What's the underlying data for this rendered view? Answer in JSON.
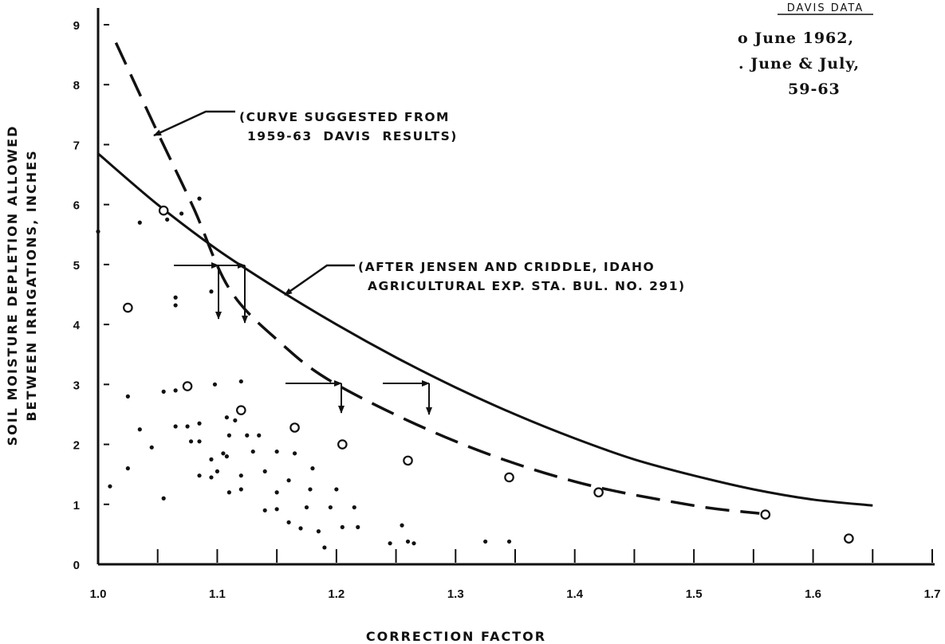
{
  "chart_data": {
    "type": "scatter",
    "title": "",
    "xlabel": "CORRECTION FACTOR",
    "ylabel_line1": "SOIL MOISTURE DEPLETION ALLOWED",
    "ylabel_line2": "BETWEEN IRRIGATIONS, INCHES",
    "xlim": [
      1.0,
      1.7
    ],
    "ylim": [
      0,
      9
    ],
    "x_ticks": [
      1.0,
      1.1,
      1.2,
      1.3,
      1.4,
      1.5,
      1.6,
      1.7
    ],
    "x_tick_labels": [
      "1.0",
      "1.1",
      "1.2",
      "1.3",
      "1.4",
      "1.5",
      "1.6",
      "1.7"
    ],
    "y_ticks": [
      0,
      1,
      2,
      3,
      4,
      5,
      6,
      7,
      8,
      9
    ],
    "y_tick_labels": [
      "0",
      "1",
      "2",
      "3",
      "4",
      "5",
      "6",
      "7",
      "8",
      "9"
    ],
    "legend": {
      "title": "DAVIS DATA",
      "entries": [
        "o June 1962,",
        ". June & July,",
        "59-63"
      ],
      "placement": "top-right"
    },
    "series": [
      {
        "name": "June 1962",
        "marker": "open-circle",
        "points": [
          [
            1.025,
            4.28
          ],
          [
            1.055,
            5.9
          ],
          [
            1.075,
            2.97
          ],
          [
            1.12,
            2.57
          ],
          [
            1.165,
            2.28
          ],
          [
            1.205,
            2.0
          ],
          [
            1.26,
            1.73
          ],
          [
            1.345,
            1.45
          ],
          [
            1.42,
            1.2
          ],
          [
            1.56,
            0.83
          ],
          [
            1.63,
            0.43
          ]
        ]
      },
      {
        "name": "June & July, 59-63",
        "marker": "dot",
        "points": [
          [
            1.0,
            5.55
          ],
          [
            1.01,
            1.3
          ],
          [
            1.025,
            2.8
          ],
          [
            1.025,
            1.6
          ],
          [
            1.035,
            5.7
          ],
          [
            1.035,
            2.25
          ],
          [
            1.045,
            1.95
          ],
          [
            1.055,
            2.88
          ],
          [
            1.055,
            1.1
          ],
          [
            1.058,
            5.75
          ],
          [
            1.065,
            4.45
          ],
          [
            1.065,
            4.32
          ],
          [
            1.065,
            2.9
          ],
          [
            1.065,
            2.3
          ],
          [
            1.07,
            5.85
          ],
          [
            1.075,
            2.3
          ],
          [
            1.078,
            2.05
          ],
          [
            1.085,
            6.1
          ],
          [
            1.085,
            2.35
          ],
          [
            1.085,
            2.05
          ],
          [
            1.085,
            1.48
          ],
          [
            1.095,
            4.55
          ],
          [
            1.095,
            1.75
          ],
          [
            1.095,
            1.45
          ],
          [
            1.098,
            3.0
          ],
          [
            1.1,
            1.55
          ],
          [
            1.105,
            1.85
          ],
          [
            1.108,
            2.45
          ],
          [
            1.11,
            2.15
          ],
          [
            1.108,
            1.8
          ],
          [
            1.11,
            1.2
          ],
          [
            1.115,
            2.4
          ],
          [
            1.12,
            3.05
          ],
          [
            1.12,
            1.48
          ],
          [
            1.12,
            1.25
          ],
          [
            1.125,
            2.15
          ],
          [
            1.13,
            1.88
          ],
          [
            1.135,
            2.15
          ],
          [
            1.14,
            1.55
          ],
          [
            1.14,
            0.9
          ],
          [
            1.15,
            1.88
          ],
          [
            1.15,
            1.2
          ],
          [
            1.15,
            0.92
          ],
          [
            1.16,
            1.4
          ],
          [
            1.16,
            0.7
          ],
          [
            1.165,
            1.85
          ],
          [
            1.17,
            0.6
          ],
          [
            1.175,
            0.95
          ],
          [
            1.178,
            1.25
          ],
          [
            1.18,
            1.6
          ],
          [
            1.185,
            0.55
          ],
          [
            1.19,
            0.28
          ],
          [
            1.195,
            0.95
          ],
          [
            1.2,
            1.25
          ],
          [
            1.205,
            0.62
          ],
          [
            1.215,
            0.95
          ],
          [
            1.218,
            0.62
          ],
          [
            1.245,
            0.35
          ],
          [
            1.255,
            0.65
          ],
          [
            1.26,
            0.38
          ],
          [
            1.265,
            0.35
          ],
          [
            1.325,
            0.38
          ],
          [
            1.345,
            0.38
          ]
        ]
      },
      {
        "name": "(CURVE SUGGESTED FROM 1959-63 DAVIS RESULTS)",
        "style": "dashed",
        "points": [
          [
            1.015,
            8.7
          ],
          [
            1.05,
            7.2
          ],
          [
            1.08,
            5.95
          ],
          [
            1.11,
            4.6
          ],
          [
            1.15,
            3.75
          ],
          [
            1.2,
            3.0
          ],
          [
            1.3,
            2.05
          ],
          [
            1.4,
            1.38
          ],
          [
            1.5,
            0.98
          ],
          [
            1.555,
            0.85
          ]
        ]
      },
      {
        "name": "(AFTER JENSEN AND CRIDDLE, IDAHO AGRICULTURAL EXP. STA. BUL. NO. 291)",
        "style": "solid",
        "points": [
          [
            1.0,
            6.85
          ],
          [
            1.05,
            6.0
          ],
          [
            1.1,
            5.25
          ],
          [
            1.15,
            4.6
          ],
          [
            1.2,
            4.0
          ],
          [
            1.25,
            3.45
          ],
          [
            1.3,
            2.95
          ],
          [
            1.35,
            2.5
          ],
          [
            1.4,
            2.1
          ],
          [
            1.45,
            1.75
          ],
          [
            1.5,
            1.48
          ],
          [
            1.55,
            1.25
          ],
          [
            1.6,
            1.08
          ],
          [
            1.65,
            0.98
          ]
        ]
      }
    ],
    "annotations": {
      "dashed_curve_line1": "(CURVE SUGGESTED FROM",
      "dashed_curve_line2": "1959-63  DAVIS  RESULTS)",
      "solid_curve_line1": "(AFTER JENSEN AND CRIDDLE, IDAHO",
      "solid_curve_line2": "AGRICULTURAL EXP. STA. BUL. NO. 291)"
    }
  }
}
